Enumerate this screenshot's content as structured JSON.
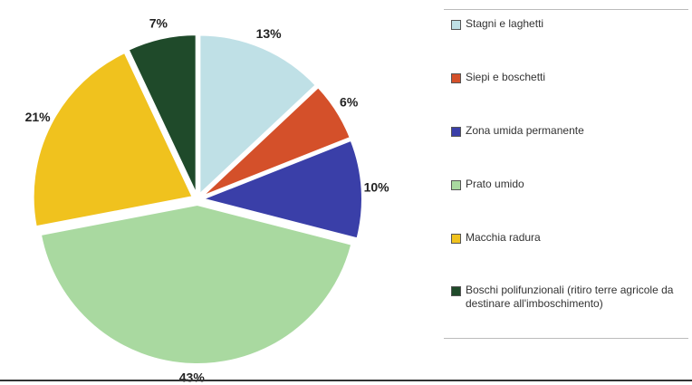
{
  "chart_data": {
    "type": "pie",
    "categories": [
      "Stagni e laghetti",
      "Siepi e boschetti",
      "Zona umida permanente",
      "Prato umido",
      "Macchia radura",
      "Boschi polifunzionali (ritiro terre agricole da destinare all'imboschimento)"
    ],
    "values": [
      13,
      6,
      10,
      43,
      21,
      7
    ],
    "value_labels": [
      "13%",
      "6%",
      "10%",
      "43%",
      "21%",
      "7%"
    ],
    "colors": [
      "#bfe0e6",
      "#d4502a",
      "#3a3fa8",
      "#a9d9a0",
      "#f0c21e",
      "#1f4a2a"
    ],
    "legend": "right"
  }
}
